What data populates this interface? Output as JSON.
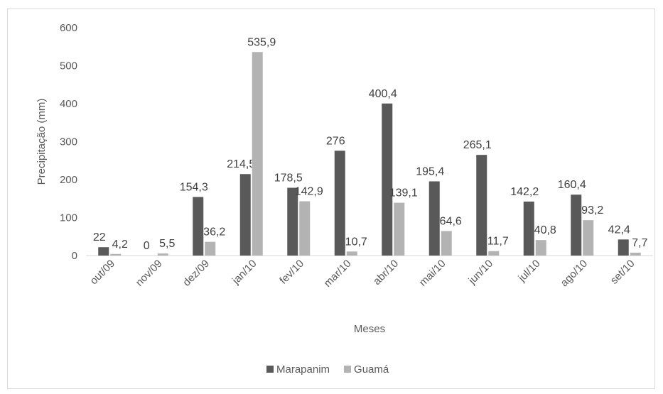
{
  "chart_data": {
    "type": "bar",
    "categories": [
      "out/09",
      "nov/09",
      "dez/09",
      "jan/10",
      "fev/10",
      "mar/10",
      "abr/10",
      "mai/10",
      "jun/10",
      "jul/10",
      "ago/10",
      "set/10"
    ],
    "series": [
      {
        "name": "Marapanim",
        "color": "#595959",
        "values": [
          22,
          0,
          154.3,
          214.5,
          178.5,
          276,
          400.4,
          195.4,
          265.1,
          142.2,
          160.4,
          42.4
        ],
        "labels": [
          "22",
          "0",
          "154,3",
          "214,5",
          "178,5",
          "276",
          "400,4",
          "195,4",
          "265,1",
          "142,2",
          "160,4",
          "42,4"
        ]
      },
      {
        "name": "Guamá",
        "color": "#b3b3b3",
        "values": [
          4.2,
          5.5,
          36.2,
          535.9,
          142.9,
          10.7,
          139.1,
          64.6,
          11.7,
          40.8,
          93.2,
          7.7
        ],
        "labels": [
          "4,2",
          "5,5",
          "36,2",
          "535,9",
          "142,9",
          "10,7",
          "139,1",
          "64,6",
          "11,7",
          "40,8",
          "93,2",
          "7,7"
        ]
      }
    ],
    "xlabel": "Meses",
    "ylabel": "Precipitação (mm)",
    "ylim": [
      0,
      600
    ],
    "yticks": [
      0,
      100,
      200,
      300,
      400,
      500,
      600
    ],
    "grid": false,
    "legend": "bottom"
  }
}
